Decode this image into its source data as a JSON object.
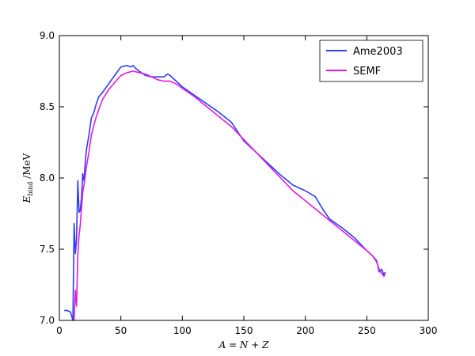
{
  "chart_data": {
    "type": "line",
    "xlabel": "A = N + Z",
    "ylabel": "E_bind / MeV",
    "xlim": [
      0,
      300
    ],
    "ylim": [
      7.0,
      9.0
    ],
    "x_ticks": [
      "0",
      "50",
      "100",
      "150",
      "200",
      "250",
      "300"
    ],
    "y_ticks": [
      "7.0",
      "7.5",
      "8.0",
      "8.5",
      "9.0"
    ],
    "grid": false,
    "legend_position": "top-right",
    "series": [
      {
        "name": "Ame2003",
        "color": "#2a3ff5",
        "x": [
          4,
          6,
          9,
          11,
          12,
          13,
          14,
          15,
          16,
          17,
          18,
          19,
          20,
          21,
          22,
          24,
          26,
          28,
          30,
          32,
          35,
          40,
          45,
          50,
          55,
          58,
          60,
          62,
          65,
          70,
          75,
          80,
          85,
          88,
          90,
          95,
          100,
          110,
          120,
          130,
          140,
          150,
          160,
          170,
          180,
          190,
          200,
          208,
          215,
          220,
          230,
          240,
          250,
          255,
          258,
          260,
          262,
          264,
          265
        ],
        "values": [
          7.07,
          7.07,
          7.06,
          7.0,
          7.68,
          7.47,
          7.57,
          7.98,
          7.76,
          7.77,
          7.87,
          8.03,
          7.98,
          8.1,
          8.2,
          8.3,
          8.42,
          8.46,
          8.52,
          8.57,
          8.6,
          8.66,
          8.72,
          8.78,
          8.79,
          8.78,
          8.79,
          8.77,
          8.75,
          8.72,
          8.71,
          8.71,
          8.71,
          8.73,
          8.72,
          8.68,
          8.64,
          8.58,
          8.52,
          8.46,
          8.39,
          8.26,
          8.18,
          8.1,
          8.02,
          7.95,
          7.91,
          7.87,
          7.77,
          7.71,
          7.65,
          7.58,
          7.49,
          7.45,
          7.42,
          7.34,
          7.36,
          7.32,
          7.34
        ]
      },
      {
        "name": "SEMF",
        "color": "#e617e6",
        "x": [
          12,
          13,
          14,
          15,
          16,
          17,
          18,
          19,
          20,
          22,
          24,
          26,
          28,
          30,
          32,
          35,
          40,
          45,
          50,
          55,
          60,
          65,
          70,
          75,
          80,
          85,
          90,
          95,
          100,
          110,
          120,
          130,
          140,
          150,
          160,
          170,
          180,
          190,
          200,
          210,
          220,
          230,
          240,
          250,
          255,
          258,
          260,
          262,
          264,
          265
        ],
        "values": [
          7.0,
          7.21,
          7.1,
          7.46,
          7.6,
          7.67,
          7.79,
          7.9,
          7.95,
          8.08,
          8.18,
          8.3,
          8.37,
          8.43,
          8.48,
          8.55,
          8.62,
          8.67,
          8.72,
          8.74,
          8.75,
          8.74,
          8.73,
          8.71,
          8.69,
          8.68,
          8.68,
          8.66,
          8.63,
          8.57,
          8.5,
          8.43,
          8.36,
          8.27,
          8.18,
          8.09,
          8.0,
          7.91,
          7.84,
          7.77,
          7.7,
          7.63,
          7.56,
          7.49,
          7.45,
          7.41,
          7.36,
          7.33,
          7.31,
          7.33
        ]
      }
    ]
  }
}
